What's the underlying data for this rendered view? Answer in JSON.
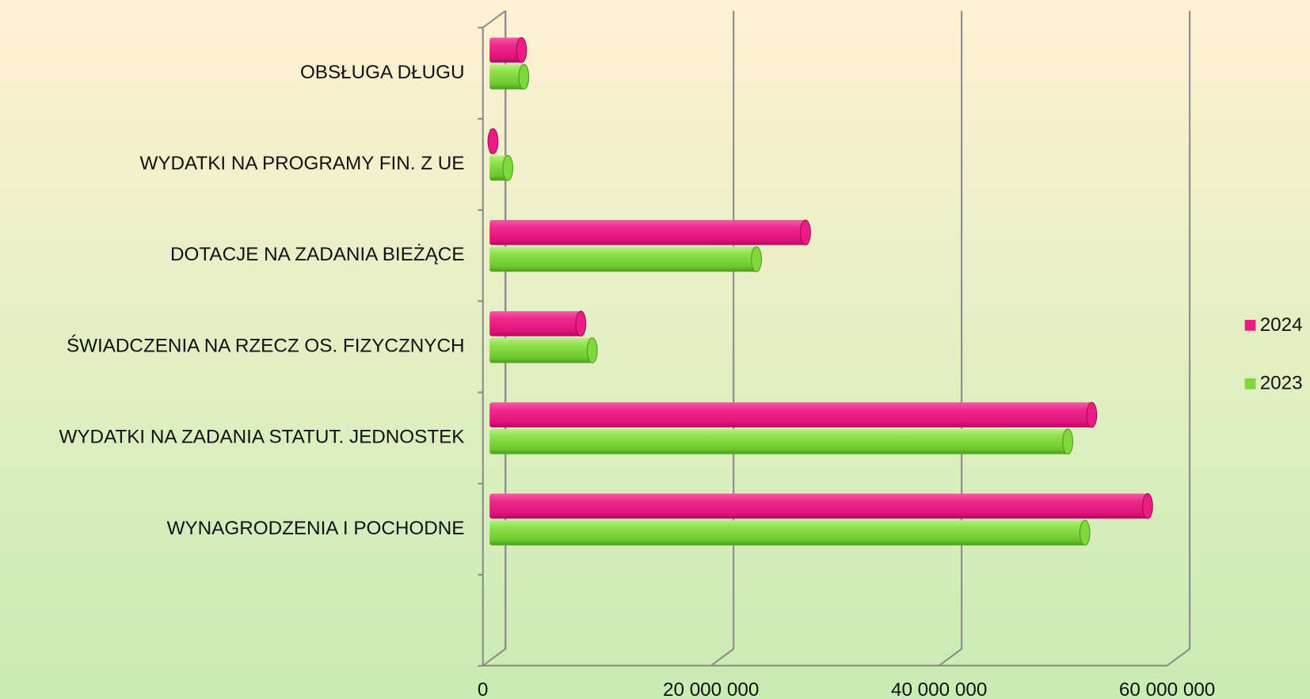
{
  "chart_data": {
    "type": "bar",
    "orientation": "horizontal",
    "categories": [
      "OBSŁUGA DŁUGU",
      "WYDATKI NA PROGRAMY FIN. Z UE",
      "DOTACJE NA ZADANIA BIEŻĄCE",
      "ŚWIADCZENIA NA RZECZ OS. FIZYCZNYCH",
      "WYDATKI NA ZADANIA STATUT. JEDNOSTEK",
      "WYNAGRODZENIA I POCHODNE"
    ],
    "series": [
      {
        "name": "2024",
        "color": "#ec1c84",
        "values": [
          2800000,
          300000,
          27700000,
          8000000,
          52800000,
          57700000
        ]
      },
      {
        "name": "2023",
        "color": "#7ed83c",
        "values": [
          3000000,
          1600000,
          23400000,
          9000000,
          50700000,
          52200000
        ]
      }
    ],
    "xlim": [
      0,
      60000000
    ],
    "xticks": [
      0,
      {
        "value": 20000000,
        "label": "20 000 000"
      },
      {
        "value": 40000000,
        "label": "40 000 000"
      },
      {
        "value": 60000000,
        "label": "60 000 000"
      }
    ],
    "grid": true,
    "legend": "right"
  }
}
